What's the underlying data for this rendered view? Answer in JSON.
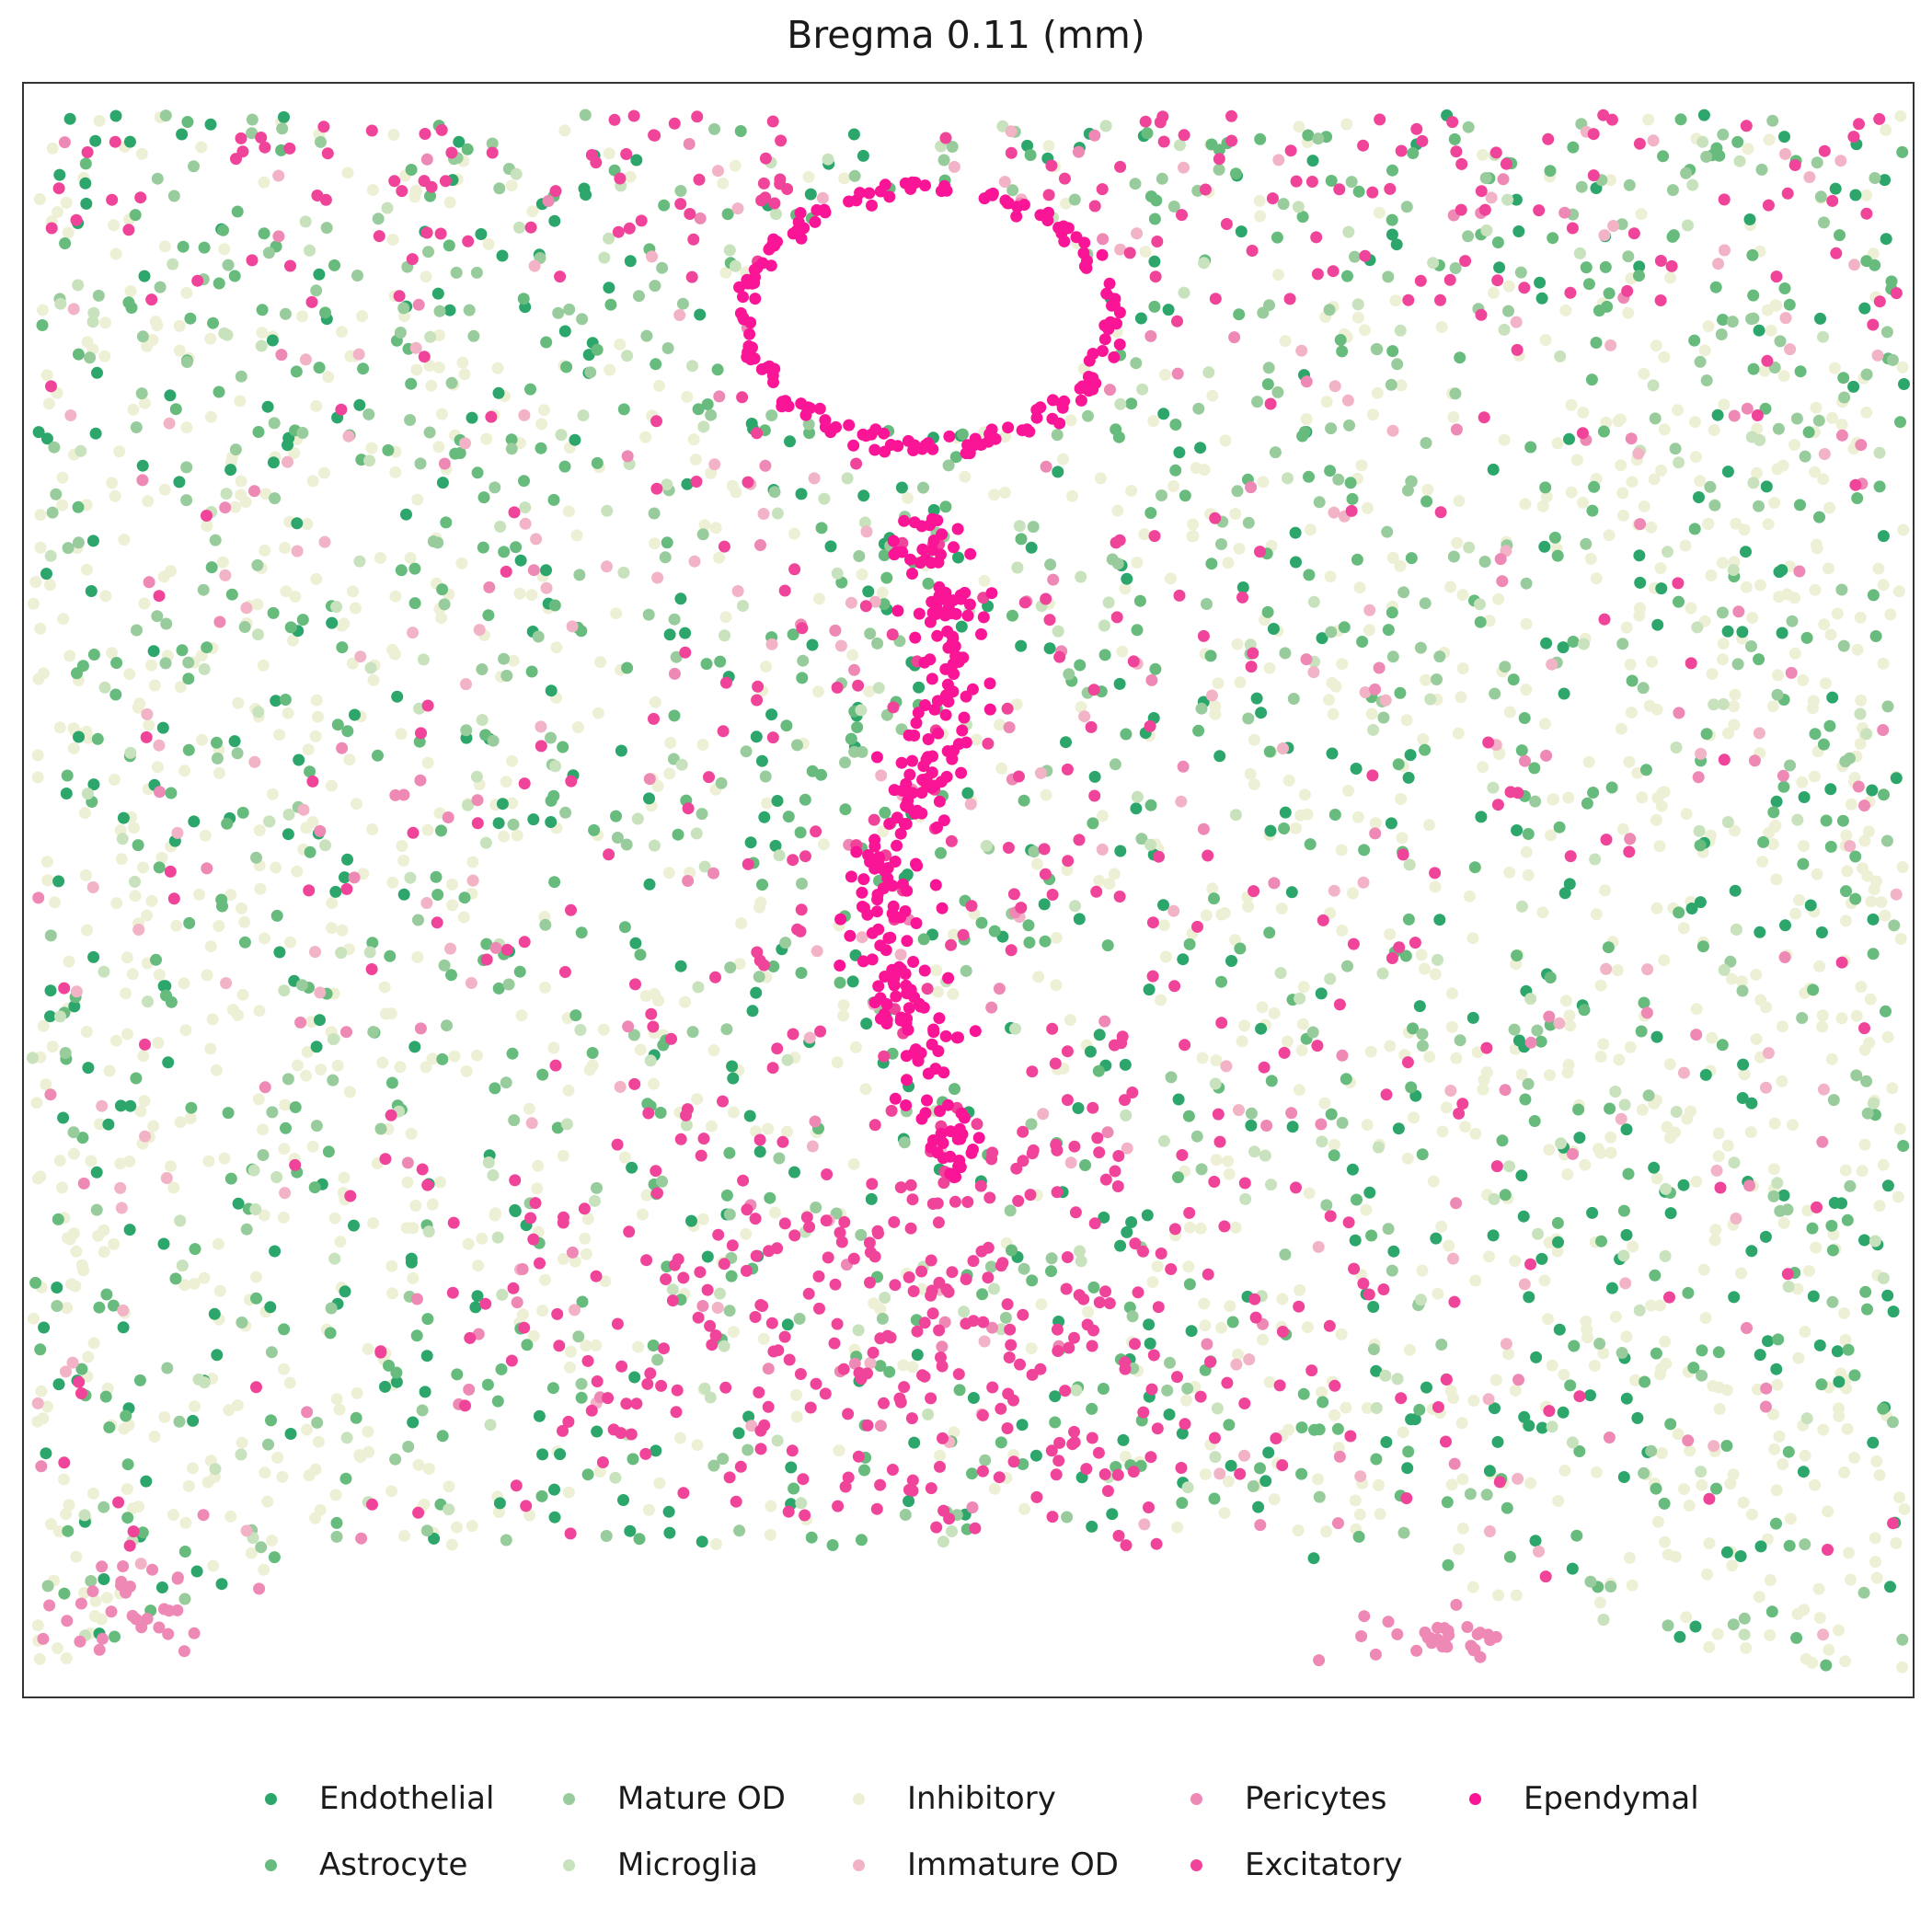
{
  "chart_data": {
    "type": "scatter",
    "title": "Bregma 0.11 (mm)",
    "xlabel": "",
    "ylabel": "",
    "axes_ticks": "none",
    "grid": false,
    "legend_position": "bottom",
    "series": [
      {
        "name": "Endothelial",
        "color": "#2ca66b",
        "approx_count": 520,
        "region": "scattered throughout, denser at lower edge"
      },
      {
        "name": "Astrocyte",
        "color": "#66bb7d",
        "approx_count": 640,
        "region": "scattered throughout, lines lower boundary"
      },
      {
        "name": "Mature OD",
        "color": "#99cc9c",
        "approx_count": 420,
        "region": "scattered throughout"
      },
      {
        "name": "Microglia",
        "color": "#c7e2bc",
        "approx_count": 260,
        "region": "scattered throughout"
      },
      {
        "name": "Inhibitory",
        "color": "#eef0d6",
        "approx_count": 1800,
        "region": "dense across left and right lateral regions"
      },
      {
        "name": "Immature OD",
        "color": "#f2b3c6",
        "approx_count": 180,
        "region": "scattered throughout"
      },
      {
        "name": "Pericytes",
        "color": "#ee88b4",
        "approx_count": 220,
        "region": "scattered, clusters near bottom corners"
      },
      {
        "name": "Excitatory",
        "color": "#f0449a",
        "approx_count": 700,
        "region": "top band, midline and lower central region"
      },
      {
        "name": "Ependymal",
        "color": "#fa1496",
        "approx_count": 260,
        "region": "ring around ventricle near top center and column along midline"
      }
    ]
  },
  "legend": {
    "items": [
      "Endothelial",
      "Mature OD",
      "Inhibitory",
      "Pericytes",
      "Ependymal",
      "Astrocyte",
      "Microglia",
      "Immature OD",
      "Excitatory"
    ]
  }
}
